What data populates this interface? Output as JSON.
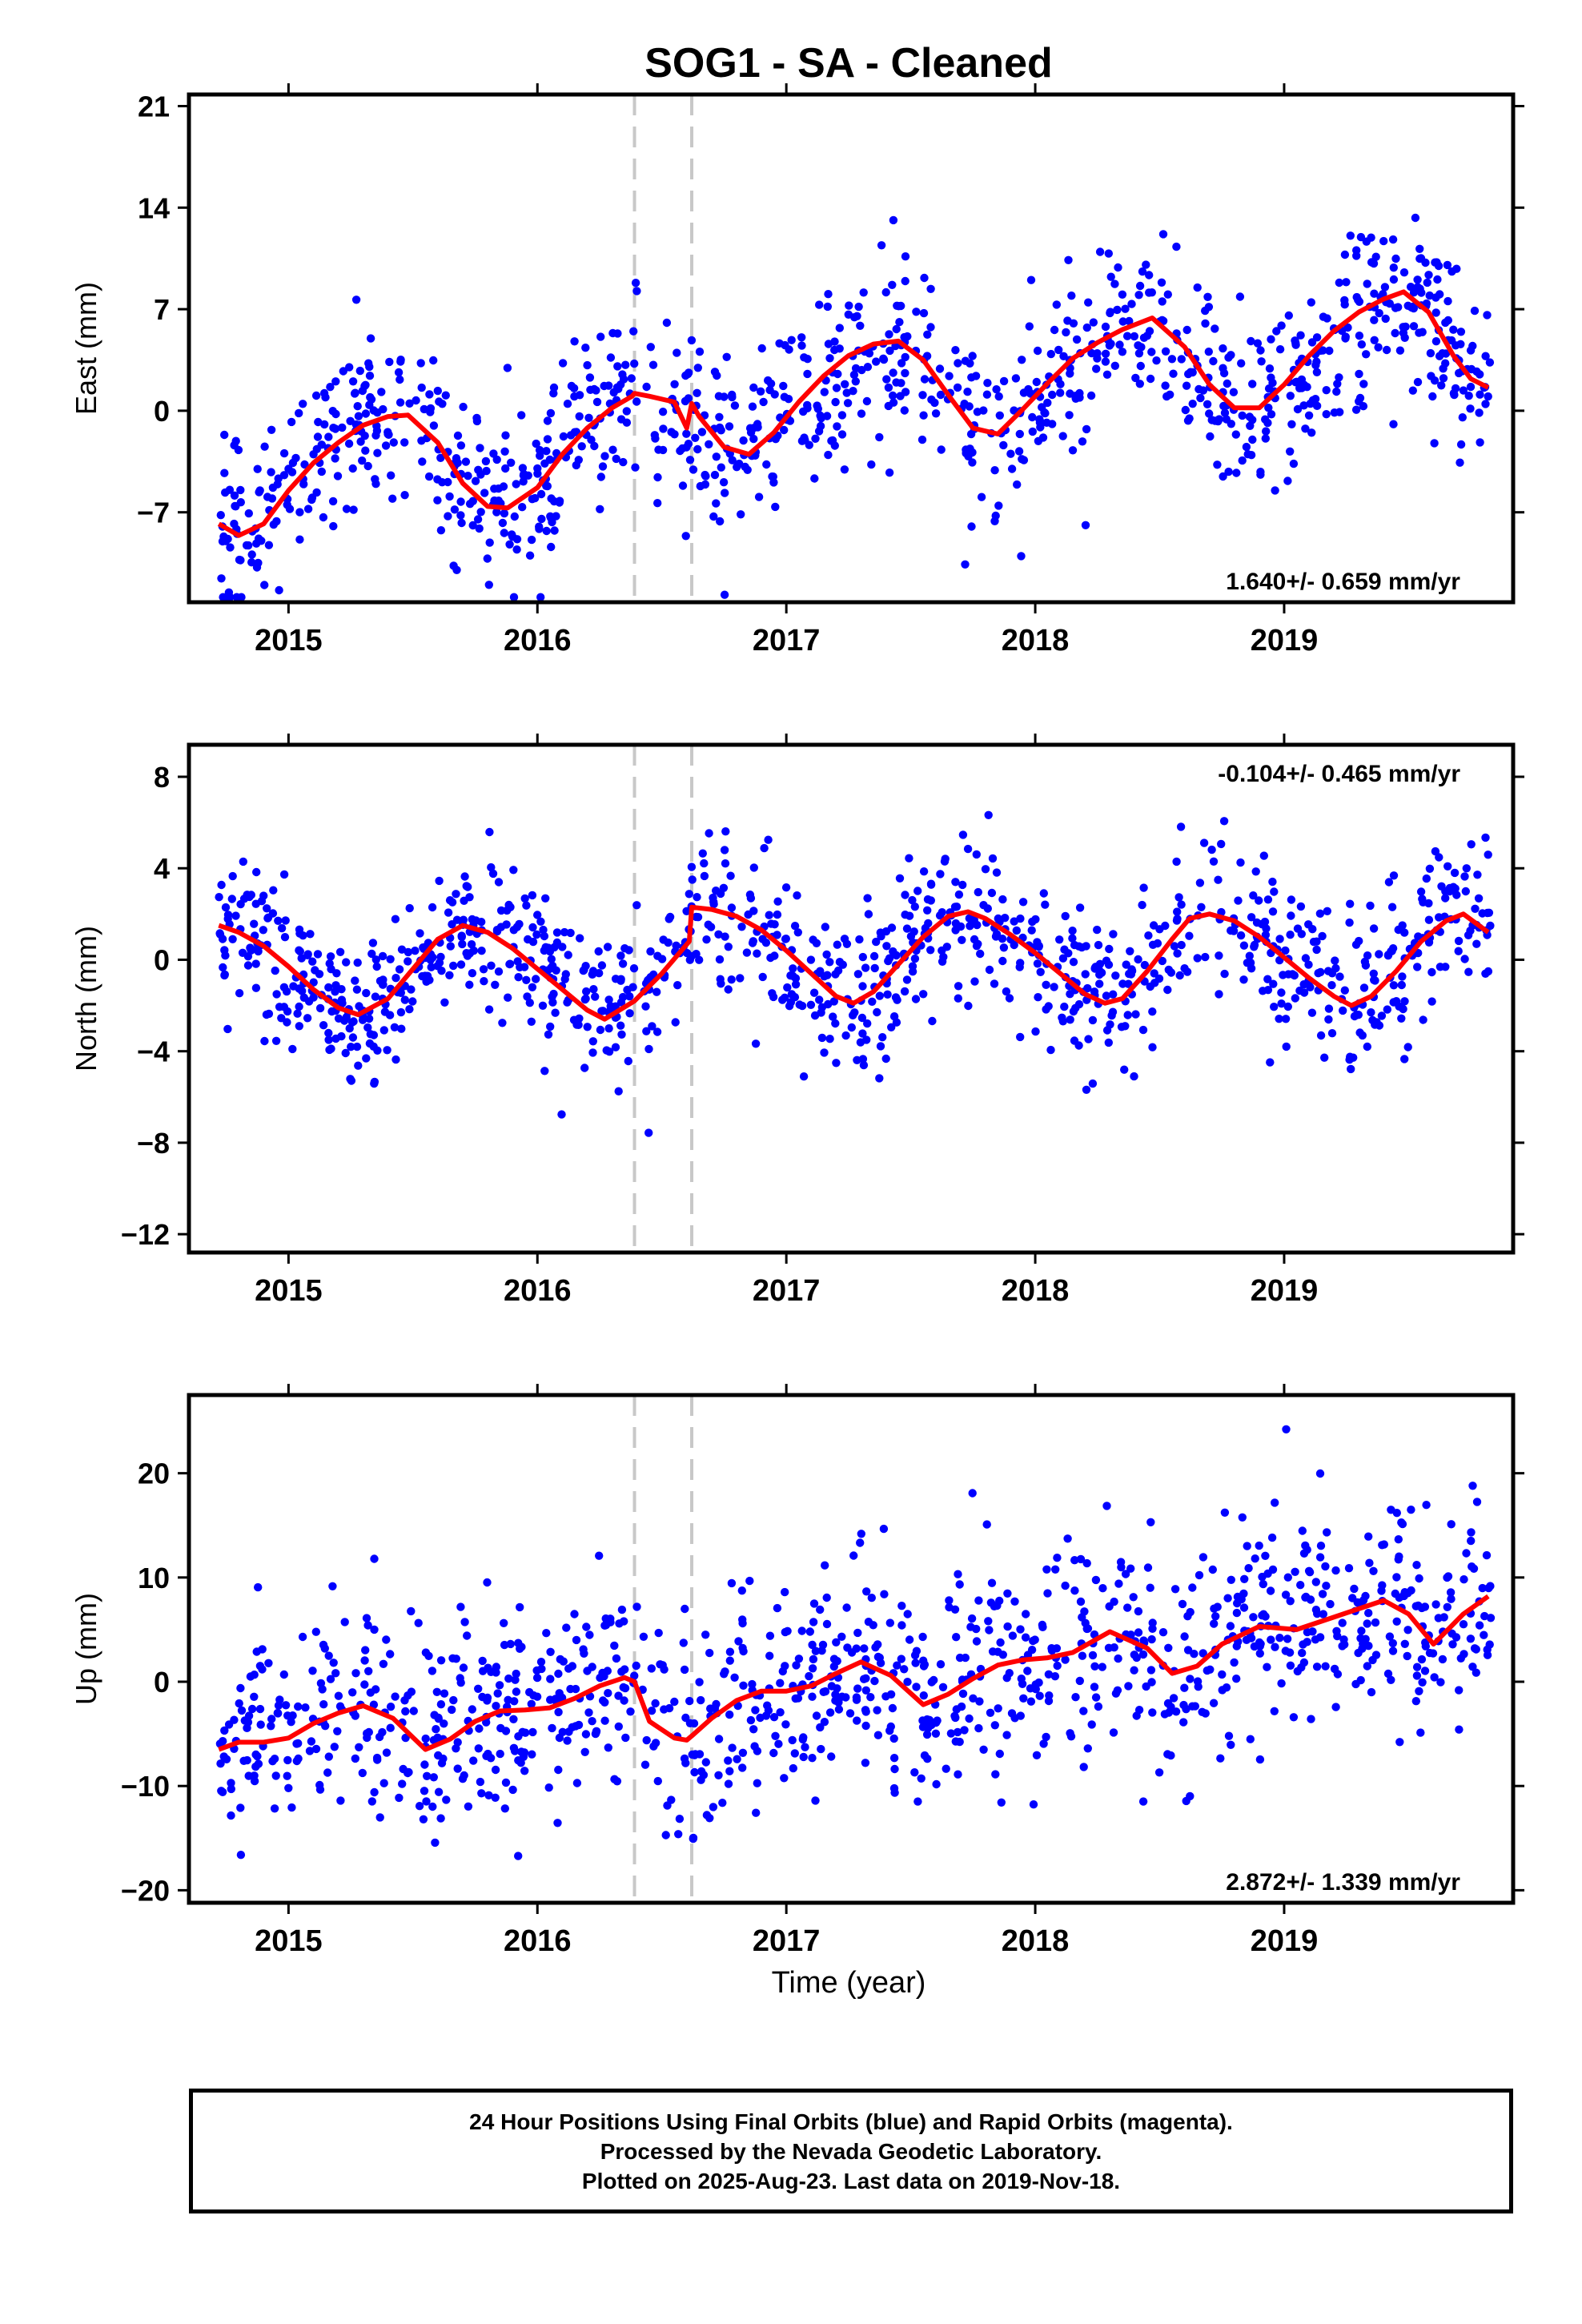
{
  "title": "SOG1  - SA - Cleaned",
  "xlabel": "Time (year)",
  "caption": {
    "line1": "24 Hour Positions Using Final Orbits (blue) and Rapid Orbits (magenta).",
    "line2": "Processed by the Nevada Geodetic Laboratory.",
    "line3": "Plotted on 2025-Aug-23. Last data on 2019-Nov-18."
  },
  "colors": {
    "points": "#0000ff",
    "fit": "#ff0000",
    "breaks": "#c8c8c8",
    "frame": "#000000"
  },
  "chart_data": [
    {
      "type": "scatter",
      "ylabel": "East (mm)",
      "xlim": [
        2014.6,
        2019.92
      ],
      "ylim": [
        -13.2,
        21.8
      ],
      "yticks": [
        -7,
        0,
        7,
        14,
        21
      ],
      "xticks": [
        2015,
        2016,
        2017,
        2018,
        2019
      ],
      "rate_label": "1.640+/- 0.659 mm/yr",
      "rate_position": "bottom-right",
      "breaks": [
        2016.39,
        2016.62
      ],
      "fit": {
        "x": [
          2014.72,
          2014.8,
          2014.9,
          2015.0,
          2015.1,
          2015.2,
          2015.3,
          2015.4,
          2015.48,
          2015.6,
          2015.7,
          2015.8,
          2015.88,
          2016.0,
          2016.1,
          2016.2,
          2016.3,
          2016.38,
          2016.39,
          2016.45,
          2016.55,
          2016.6,
          2016.62,
          2016.65,
          2016.75,
          2016.85,
          2016.95,
          2017.05,
          2017.15,
          2017.25,
          2017.35,
          2017.45,
          2017.55,
          2017.65,
          2017.75,
          2017.85,
          2017.95,
          2018.05,
          2018.15,
          2018.25,
          2018.35,
          2018.47,
          2018.6,
          2018.7,
          2018.8,
          2018.9,
          2019.0,
          2019.1,
          2019.2,
          2019.3,
          2019.4,
          2019.48,
          2019.58,
          2019.68,
          2019.75,
          2019.82
        ],
        "y": [
          -7.8,
          -8.6,
          -7.8,
          -5.5,
          -3.6,
          -2.2,
          -1.0,
          -0.4,
          -0.3,
          -2.2,
          -5.0,
          -6.6,
          -6.7,
          -5.3,
          -3.0,
          -1.2,
          0.2,
          1.0,
          1.2,
          1.0,
          0.6,
          -1.2,
          0.5,
          -0.4,
          -2.5,
          -3.0,
          -1.5,
          0.6,
          2.4,
          3.8,
          4.6,
          4.8,
          3.5,
          1.1,
          -1.2,
          -1.6,
          0.1,
          1.9,
          3.6,
          4.7,
          5.6,
          6.4,
          4.4,
          1.8,
          0.2,
          0.2,
          1.8,
          3.8,
          5.5,
          6.8,
          7.7,
          8.2,
          6.8,
          3.8,
          2.2,
          1.6
        ]
      }
    },
    {
      "type": "scatter",
      "ylabel": "North (mm)",
      "xlim": [
        2014.6,
        2019.92
      ],
      "ylim": [
        -12.8,
        9.4
      ],
      "yticks": [
        -12,
        -8,
        -4,
        0,
        4,
        8
      ],
      "xticks": [
        2015,
        2016,
        2017,
        2018,
        2019
      ],
      "rate_label": "-0.104+/- 0.465 mm/yr",
      "rate_position": "top-right",
      "breaks": [
        2016.39,
        2016.62
      ],
      "fit": {
        "x": [
          2014.72,
          2014.8,
          2014.9,
          2015.0,
          2015.1,
          2015.2,
          2015.28,
          2015.4,
          2015.5,
          2015.6,
          2015.7,
          2015.8,
          2015.9,
          2016.0,
          2016.1,
          2016.2,
          2016.27,
          2016.39,
          2016.5,
          2016.61,
          2016.62,
          2016.7,
          2016.8,
          2016.9,
          2017.0,
          2017.1,
          2017.2,
          2017.27,
          2017.35,
          2017.45,
          2017.55,
          2017.65,
          2017.73,
          2017.8,
          2017.9,
          2018.0,
          2018.1,
          2018.2,
          2018.28,
          2018.35,
          2018.45,
          2018.55,
          2018.62,
          2018.7,
          2018.8,
          2018.9,
          2019.0,
          2019.1,
          2019.2,
          2019.27,
          2019.35,
          2019.45,
          2019.55,
          2019.65,
          2019.72,
          2019.82
        ],
        "y": [
          1.5,
          1.2,
          0.6,
          -0.3,
          -1.3,
          -2.1,
          -2.4,
          -1.7,
          -0.4,
          0.9,
          1.5,
          1.2,
          0.5,
          -0.4,
          -1.3,
          -2.2,
          -2.6,
          -1.8,
          -0.6,
          0.8,
          2.3,
          2.2,
          1.9,
          1.3,
          0.4,
          -0.6,
          -1.6,
          -1.9,
          -1.4,
          -0.2,
          1.0,
          1.9,
          2.1,
          1.8,
          1.1,
          0.3,
          -0.6,
          -1.5,
          -1.9,
          -1.7,
          -0.5,
          0.9,
          1.8,
          2.0,
          1.7,
          1.0,
          0.1,
          -0.8,
          -1.6,
          -2.0,
          -1.6,
          -0.5,
          0.8,
          1.7,
          2.0,
          1.2
        ]
      }
    },
    {
      "type": "scatter",
      "ylabel": "Up (mm)",
      "xlim": [
        2014.6,
        2019.92
      ],
      "ylim": [
        -21.2,
        27.5
      ],
      "yticks": [
        -20,
        -10,
        0,
        10,
        20
      ],
      "xticks": [
        2015,
        2016,
        2017,
        2018,
        2019
      ],
      "rate_label": "2.872+/- 1.339 mm/yr",
      "rate_position": "bottom-right",
      "breaks": [
        2016.39,
        2016.62
      ],
      "fit": {
        "x": [
          2014.72,
          2014.8,
          2014.9,
          2015.0,
          2015.1,
          2015.2,
          2015.3,
          2015.42,
          2015.55,
          2015.65,
          2015.75,
          2015.85,
          2015.95,
          2016.05,
          2016.15,
          2016.25,
          2016.35,
          2016.39,
          2016.45,
          2016.55,
          2016.6,
          2016.62,
          2016.7,
          2016.8,
          2016.9,
          2017.0,
          2017.1,
          2017.2,
          2017.3,
          2017.42,
          2017.55,
          2017.65,
          2017.75,
          2017.85,
          2017.95,
          2018.05,
          2018.15,
          2018.3,
          2018.45,
          2018.55,
          2018.65,
          2018.75,
          2018.9,
          2019.05,
          2019.15,
          2019.3,
          2019.4,
          2019.5,
          2019.6,
          2019.72,
          2019.82
        ],
        "y": [
          -6.5,
          -5.8,
          -5.8,
          -5.4,
          -4.0,
          -3.0,
          -2.3,
          -3.5,
          -6.5,
          -5.5,
          -3.8,
          -2.8,
          -2.7,
          -2.5,
          -1.6,
          -0.4,
          0.4,
          0.0,
          -3.8,
          -5.4,
          -5.6,
          -5.2,
          -3.5,
          -1.8,
          -0.9,
          -0.9,
          -0.4,
          0.8,
          1.9,
          0.6,
          -2.2,
          -1.2,
          0.3,
          1.6,
          2.1,
          2.3,
          2.8,
          4.8,
          3.2,
          0.8,
          1.5,
          3.6,
          5.3,
          5.0,
          5.8,
          7.0,
          7.8,
          6.5,
          3.6,
          6.5,
          8.2
        ]
      }
    }
  ]
}
